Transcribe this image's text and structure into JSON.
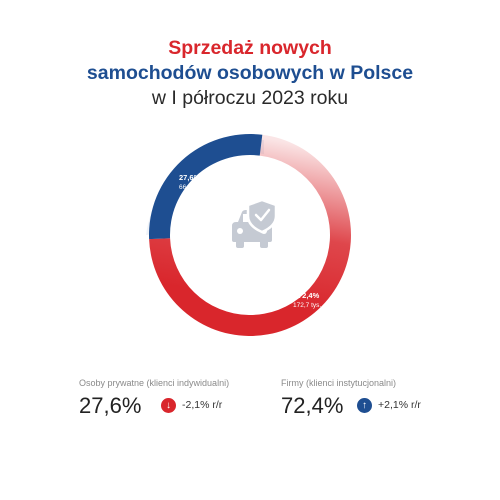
{
  "title": {
    "line1": "Sprzedaż nowych",
    "line2": "samochodów osobowych w Polsce",
    "line3": "w I półroczu 2023 roku"
  },
  "colors": {
    "red": "#d9262c",
    "blue": "#1e4e91",
    "ring_bg": "#eef2f8",
    "icon": "#c5cad3"
  },
  "chart_data": {
    "type": "pie",
    "variant": "donut",
    "title": "Sprzedaż nowych samochodów osobowych w Polsce w I półroczu 2023 roku",
    "slices": [
      {
        "name": "Osoby prywatne (klienci indywidualni)",
        "value": 27.6,
        "label": "27,6%",
        "sublabel": "66 tys.",
        "color": "#1e4e91"
      },
      {
        "name": "Firmy (klienci instytucjonalni)",
        "value": 72.4,
        "label": "72,4%",
        "sublabel": "172,7 tys.",
        "color": "#d9262c"
      }
    ],
    "center_icon": "car-shield-icon"
  },
  "stats": [
    {
      "label": "Osoby prywatne (klienci indywidualni)",
      "value": "27,6%",
      "change": "-2,1% r/r",
      "direction": "down",
      "arrow_icon": "arrow-down-icon",
      "color": "#d9262c"
    },
    {
      "label": "Firmy (klienci instytucjonalni)",
      "value": "72,4%",
      "change": "+2,1% r/r",
      "direction": "up",
      "arrow_icon": "arrow-up-icon",
      "color": "#1e4e91"
    }
  ]
}
